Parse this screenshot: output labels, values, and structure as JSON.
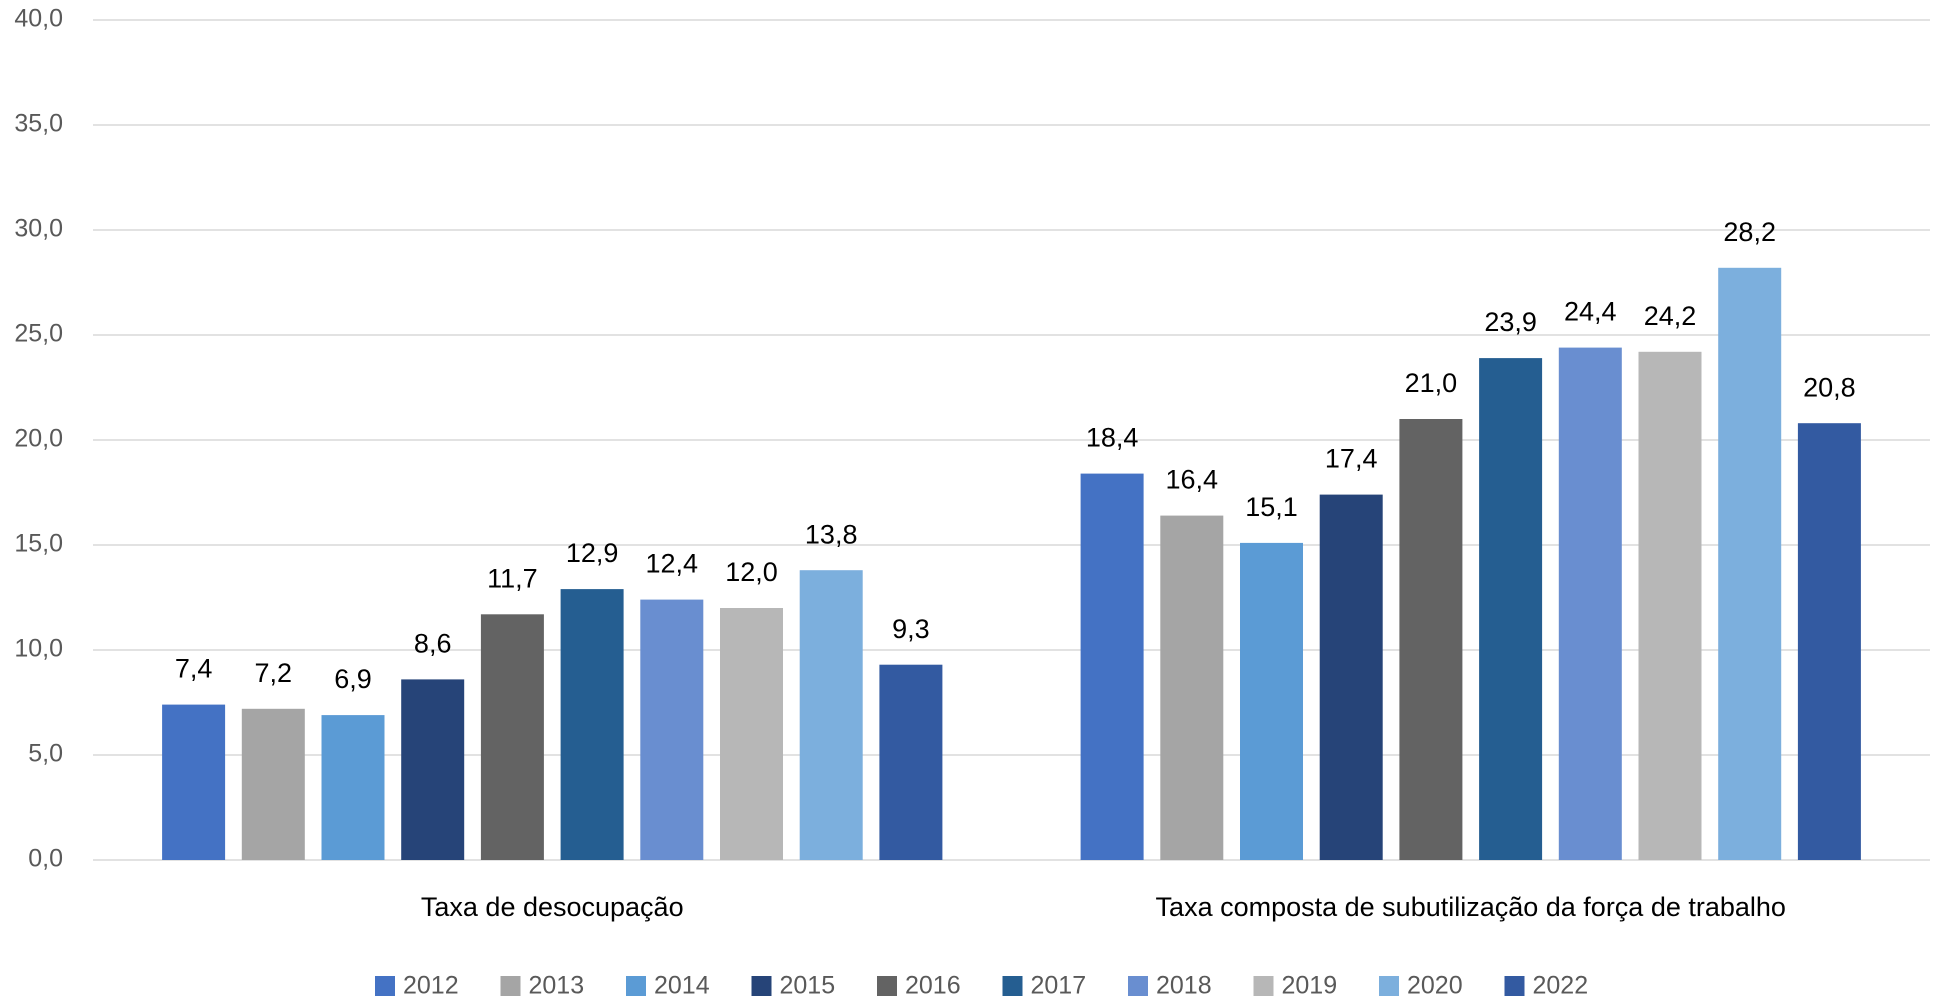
{
  "chart_data": {
    "type": "bar",
    "categories": [
      "Taxa de desocupação",
      "Taxa composta de subutilização da força de trabalho"
    ],
    "series": [
      {
        "name": "2012",
        "color": "#4472c4",
        "values": [
          7.4,
          18.4
        ],
        "value_labels": [
          "7,4",
          "18,4"
        ]
      },
      {
        "name": "2013",
        "color": "#a5a5a5",
        "values": [
          7.2,
          16.4
        ],
        "value_labels": [
          "7,2",
          "16,4"
        ]
      },
      {
        "name": "2014",
        "color": "#5b9bd5",
        "values": [
          6.9,
          15.1
        ],
        "value_labels": [
          "6,9",
          "15,1"
        ]
      },
      {
        "name": "2015",
        "color": "#264478",
        "values": [
          8.6,
          17.4
        ],
        "value_labels": [
          "8,6",
          "17,4"
        ]
      },
      {
        "name": "2016",
        "color": "#636363",
        "values": [
          11.7,
          21.0
        ],
        "value_labels": [
          "11,7",
          "21,0"
        ]
      },
      {
        "name": "2017",
        "color": "#255e91",
        "values": [
          12.9,
          23.9
        ],
        "value_labels": [
          "12,9",
          "23,9"
        ]
      },
      {
        "name": "2018",
        "color": "#698ed0",
        "values": [
          12.4,
          24.4
        ],
        "value_labels": [
          "12,4",
          "24,4"
        ]
      },
      {
        "name": "2019",
        "color": "#b7b7b7",
        "values": [
          12.0,
          24.2
        ],
        "value_labels": [
          "12,0",
          "24,2"
        ]
      },
      {
        "name": "2020",
        "color": "#7cafdd",
        "values": [
          13.8,
          28.2
        ],
        "value_labels": [
          "13,8",
          "28,2"
        ]
      },
      {
        "name": "2022",
        "color": "#335aa1",
        "values": [
          9.3,
          20.8
        ],
        "value_labels": [
          "9,3",
          "20,8"
        ]
      }
    ],
    "ylim": [
      0,
      40
    ],
    "yticks": [
      {
        "value": 0,
        "label": "0,0"
      },
      {
        "value": 5,
        "label": "5,0"
      },
      {
        "value": 10,
        "label": "10,0"
      },
      {
        "value": 15,
        "label": "15,0"
      },
      {
        "value": 20,
        "label": "20,0"
      },
      {
        "value": 25,
        "label": "25,0"
      },
      {
        "value": 30,
        "label": "30,0"
      },
      {
        "value": 35,
        "label": "35,0"
      },
      {
        "value": 40,
        "label": "40,0"
      }
    ],
    "grid": true,
    "legend": "bottom"
  }
}
